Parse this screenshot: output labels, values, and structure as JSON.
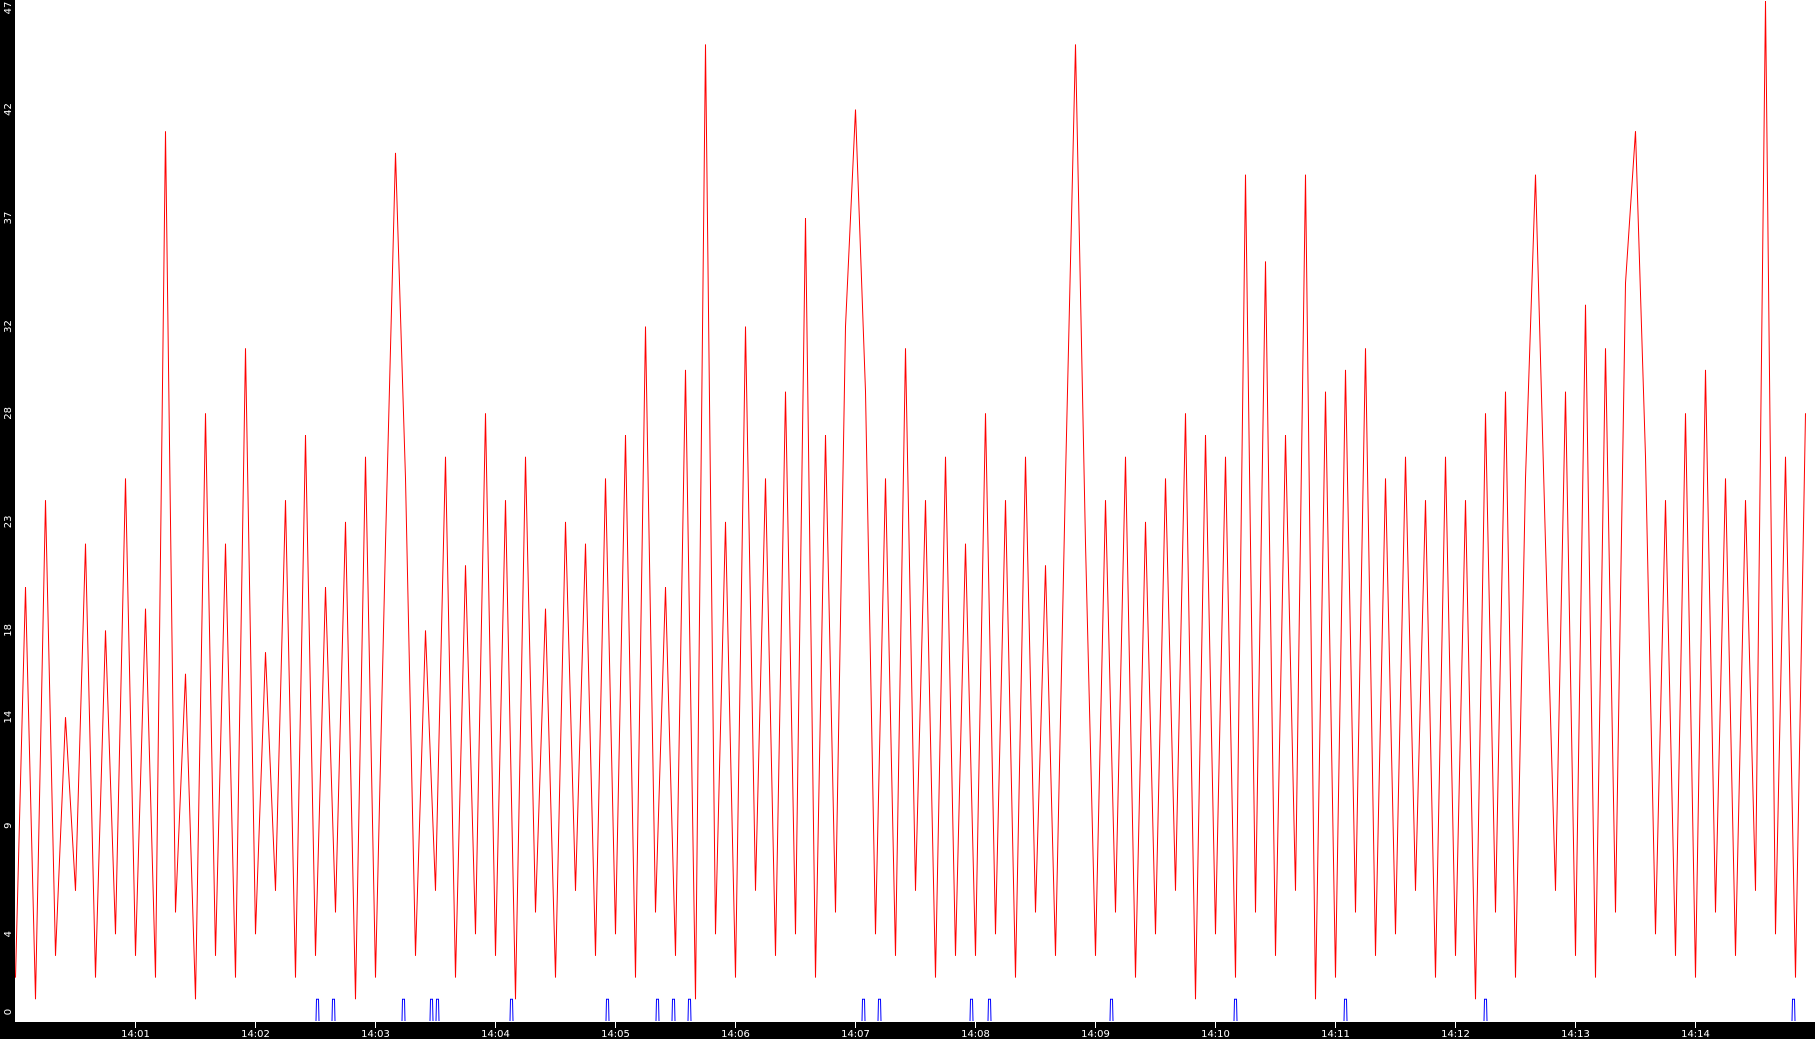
{
  "chart_data": {
    "type": "line",
    "title": "",
    "xlabel": "",
    "ylabel": "",
    "ylim": [
      0,
      47
    ],
    "xlim": [
      "14:00:00",
      "14:15:00"
    ],
    "grid": false,
    "background": "#ffffff",
    "axis_background": "#000000",
    "y_ticks": [
      "0",
      "4",
      "9",
      "14",
      "18",
      "23",
      "28",
      "32",
      "37",
      "42",
      "47"
    ],
    "x_ticks": [
      "14:01",
      "14:02",
      "14:03",
      "14:04",
      "14:05",
      "14:06",
      "14:07",
      "14:08",
      "14:09",
      "14:10",
      "14:11",
      "14:12",
      "14:13",
      "14:14"
    ],
    "series": [
      {
        "color": "#ff0000",
        "start": "14:00:00",
        "interval_seconds": 5,
        "values": [
          2,
          20,
          1,
          24,
          3,
          14,
          6,
          22,
          2,
          18,
          4,
          25,
          3,
          19,
          2,
          41,
          5,
          16,
          1,
          28,
          3,
          22,
          2,
          31,
          4,
          17,
          6,
          24,
          2,
          27,
          3,
          20,
          5,
          23,
          1,
          26,
          2,
          22,
          40,
          25,
          3,
          18,
          6,
          26,
          2,
          21,
          4,
          28,
          3,
          24,
          1,
          26,
          5,
          19,
          2,
          23,
          6,
          22,
          3,
          25,
          4,
          27,
          2,
          32,
          5,
          20,
          3,
          30,
          1,
          45,
          4,
          23,
          2,
          32,
          6,
          25,
          3,
          29,
          4,
          37,
          2,
          27,
          5,
          32,
          42,
          29,
          4,
          25,
          3,
          31,
          6,
          24,
          2,
          26,
          3,
          22,
          3,
          28,
          4,
          24,
          2,
          26,
          5,
          21,
          3,
          25,
          45,
          22,
          3,
          24,
          5,
          26,
          2,
          23,
          4,
          25,
          6,
          28,
          1,
          27,
          4,
          26,
          2,
          39,
          5,
          35,
          3,
          27,
          6,
          39,
          1,
          29,
          2,
          30,
          5,
          31,
          3,
          25,
          4,
          26,
          6,
          24,
          2,
          26,
          3,
          24,
          1,
          28,
          5,
          29,
          2,
          25,
          39,
          22,
          6,
          29,
          3,
          33,
          2,
          31,
          5,
          34,
          41,
          26,
          4,
          24,
          3,
          28,
          2,
          30,
          5,
          25,
          3,
          24,
          6,
          47,
          4,
          26,
          2,
          28
        ]
      },
      {
        "color": "#0000ff",
        "type": "spikes",
        "points": [
          [
            "14:02:31",
            1
          ],
          [
            "14:02:39",
            1
          ],
          [
            "14:03:14",
            1
          ],
          [
            "14:03:28",
            1
          ],
          [
            "14:03:31",
            1
          ],
          [
            "14:04:08",
            1
          ],
          [
            "14:04:56",
            1
          ],
          [
            "14:05:21",
            1
          ],
          [
            "14:05:29",
            1
          ],
          [
            "14:05:37",
            1
          ],
          [
            "14:07:04",
            1
          ],
          [
            "14:07:12",
            1
          ],
          [
            "14:07:58",
            1
          ],
          [
            "14:08:07",
            1
          ],
          [
            "14:09:08",
            1
          ],
          [
            "14:10:10",
            1
          ],
          [
            "14:11:05",
            1
          ],
          [
            "14:12:15",
            1
          ],
          [
            "14:14:49",
            1
          ]
        ]
      }
    ]
  }
}
